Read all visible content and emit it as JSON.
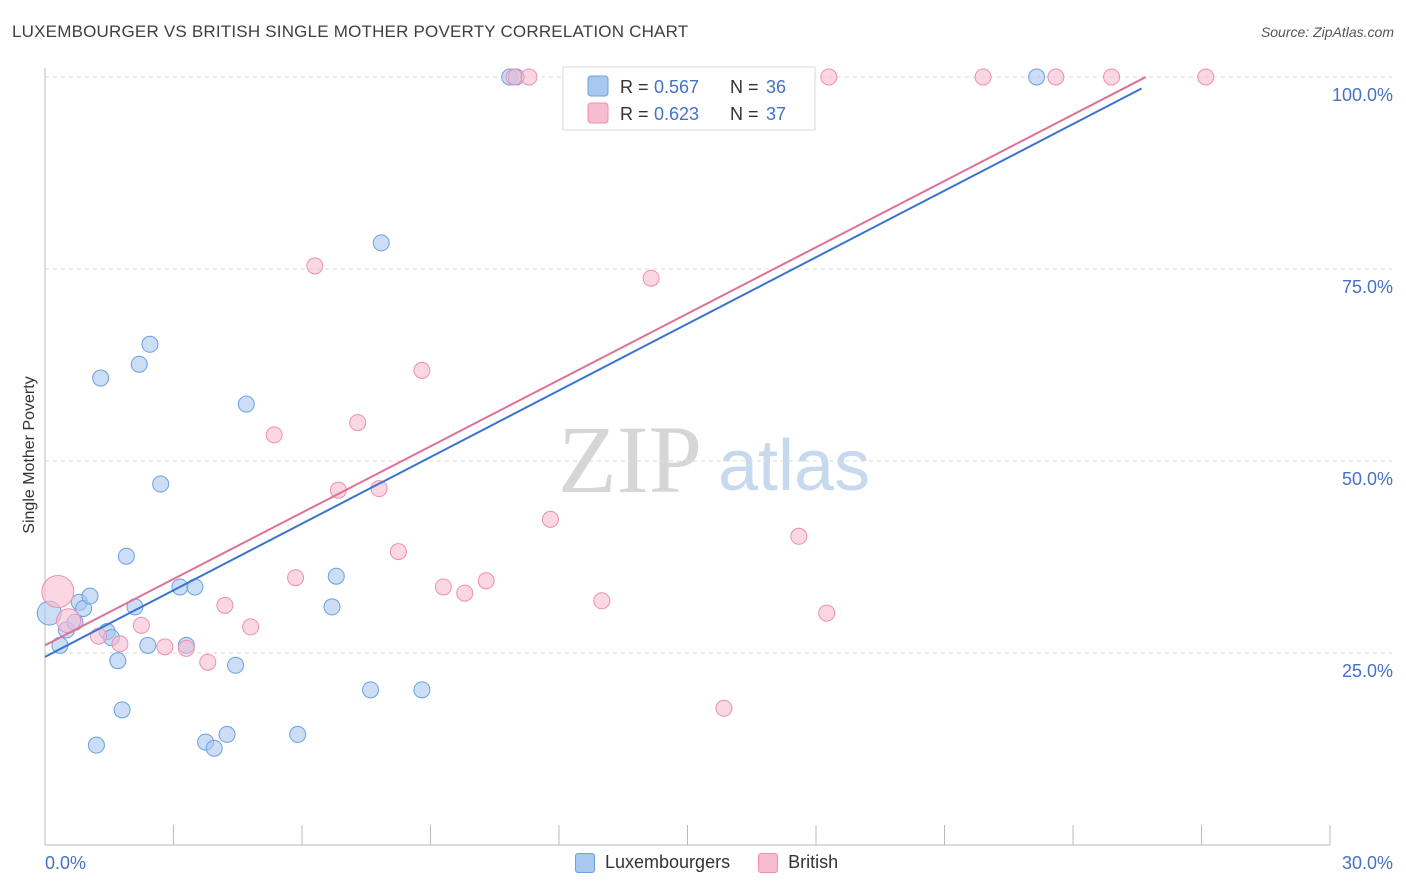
{
  "header": {
    "title": "LUXEMBOURGER VS BRITISH SINGLE MOTHER POVERTY CORRELATION CHART",
    "source": "Source: ZipAtlas.com"
  },
  "watermark": {
    "zip": "ZIP",
    "atlas": "atlas"
  },
  "legend": {
    "rows": [
      {
        "r_label": "R = ",
        "r_value": "0.567",
        "n_label": "N = ",
        "n_value": "36"
      },
      {
        "r_label": "R = ",
        "r_value": "0.623",
        "n_label": "N = ",
        "n_value": "37"
      }
    ]
  },
  "bottom_legend": {
    "series1": "Luxembourgers",
    "series2": "British"
  },
  "colors": {
    "series1_fill": "#a9c8f0",
    "series1_stroke": "#6d9fe0",
    "series1_line": "#3a74d0",
    "series2_fill": "#f7bcd0",
    "series2_stroke": "#ee8fb0",
    "series2_line": "#e07098",
    "tick_text": "#4472c4",
    "grid": "#d9d9d9"
  },
  "chart_data": {
    "type": "scatter",
    "ylabel": "Single Mother Poverty",
    "xlim": [
      0,
      30
    ],
    "ylim": [
      0,
      100
    ],
    "x_tick_labels": [
      "0.0%",
      "30.0%"
    ],
    "y_ticks": [
      25,
      50,
      75,
      100
    ],
    "y_tick_labels": [
      "25.0%",
      "50.0%",
      "75.0%",
      "100.0%"
    ],
    "grid": true,
    "legend_position": "top-center",
    "series": [
      {
        "name": "Luxembourgers",
        "r": 0.567,
        "n": 36,
        "trend": {
          "x": [
            0,
            25.6
          ],
          "y": [
            24.5,
            98.5
          ]
        },
        "points": [
          {
            "x": 0.1,
            "y": 30.2,
            "s": 12
          },
          {
            "x": 0.35,
            "y": 26.0,
            "s": 8
          },
          {
            "x": 0.5,
            "y": 28.0,
            "s": 8
          },
          {
            "x": 0.7,
            "y": 29.0,
            "s": 8
          },
          {
            "x": 0.8,
            "y": 31.6,
            "s": 8
          },
          {
            "x": 0.9,
            "y": 30.8,
            "s": 8
          },
          {
            "x": 1.05,
            "y": 32.4,
            "s": 8
          },
          {
            "x": 1.2,
            "y": 13.0,
            "s": 8
          },
          {
            "x": 1.3,
            "y": 60.8,
            "s": 8
          },
          {
            "x": 1.45,
            "y": 27.8,
            "s": 8
          },
          {
            "x": 1.55,
            "y": 27.0,
            "s": 8
          },
          {
            "x": 1.7,
            "y": 24.0,
            "s": 8
          },
          {
            "x": 1.8,
            "y": 17.6,
            "s": 8
          },
          {
            "x": 1.9,
            "y": 37.6,
            "s": 8
          },
          {
            "x": 2.1,
            "y": 31.0,
            "s": 8
          },
          {
            "x": 2.2,
            "y": 62.6,
            "s": 8
          },
          {
            "x": 2.4,
            "y": 26.0,
            "s": 8
          },
          {
            "x": 2.45,
            "y": 65.2,
            "s": 8
          },
          {
            "x": 2.7,
            "y": 47.0,
            "s": 8
          },
          {
            "x": 3.15,
            "y": 33.6,
            "s": 8
          },
          {
            "x": 3.3,
            "y": 26.0,
            "s": 8
          },
          {
            "x": 3.5,
            "y": 33.6,
            "s": 8
          },
          {
            "x": 3.75,
            "y": 13.4,
            "s": 8
          },
          {
            "x": 3.95,
            "y": 12.6,
            "s": 8
          },
          {
            "x": 4.25,
            "y": 14.4,
            "s": 8
          },
          {
            "x": 4.45,
            "y": 23.4,
            "s": 8
          },
          {
            "x": 4.7,
            "y": 57.4,
            "s": 8
          },
          {
            "x": 5.9,
            "y": 14.4,
            "s": 8
          },
          {
            "x": 6.7,
            "y": 31.0,
            "s": 8
          },
          {
            "x": 6.8,
            "y": 35.0,
            "s": 8
          },
          {
            "x": 7.6,
            "y": 20.2,
            "s": 8
          },
          {
            "x": 7.85,
            "y": 78.4,
            "s": 8
          },
          {
            "x": 8.8,
            "y": 20.2,
            "s": 8
          },
          {
            "x": 10.85,
            "y": 100.0,
            "s": 8
          },
          {
            "x": 11.0,
            "y": 100.0,
            "s": 8
          },
          {
            "x": 23.15,
            "y": 100.0,
            "s": 8
          }
        ]
      },
      {
        "name": "British",
        "r": 0.623,
        "n": 37,
        "trend": {
          "x": [
            0,
            25.7
          ],
          "y": [
            26.0,
            100.0
          ]
        },
        "points": [
          {
            "x": 0.3,
            "y": 33.0,
            "s": 16
          },
          {
            "x": 0.55,
            "y": 29.2,
            "s": 12
          },
          {
            "x": 1.25,
            "y": 27.2,
            "s": 8
          },
          {
            "x": 1.75,
            "y": 26.2,
            "s": 8
          },
          {
            "x": 2.25,
            "y": 28.6,
            "s": 8
          },
          {
            "x": 2.8,
            "y": 25.8,
            "s": 8
          },
          {
            "x": 3.3,
            "y": 25.6,
            "s": 8
          },
          {
            "x": 3.8,
            "y": 23.8,
            "s": 8
          },
          {
            "x": 4.2,
            "y": 31.2,
            "s": 8
          },
          {
            "x": 4.8,
            "y": 28.4,
            "s": 8
          },
          {
            "x": 5.35,
            "y": 53.4,
            "s": 8
          },
          {
            "x": 5.85,
            "y": 34.8,
            "s": 8
          },
          {
            "x": 6.3,
            "y": 75.4,
            "s": 8
          },
          {
            "x": 6.85,
            "y": 46.2,
            "s": 8
          },
          {
            "x": 7.3,
            "y": 55.0,
            "s": 8
          },
          {
            "x": 7.8,
            "y": 46.4,
            "s": 8
          },
          {
            "x": 8.25,
            "y": 38.2,
            "s": 8
          },
          {
            "x": 8.8,
            "y": 61.8,
            "s": 8
          },
          {
            "x": 9.3,
            "y": 33.6,
            "s": 8
          },
          {
            "x": 9.8,
            "y": 32.8,
            "s": 8
          },
          {
            "x": 10.3,
            "y": 34.4,
            "s": 8
          },
          {
            "x": 10.95,
            "y": 100.0,
            "s": 8
          },
          {
            "x": 11.3,
            "y": 100.0,
            "s": 8
          },
          {
            "x": 11.8,
            "y": 42.4,
            "s": 8
          },
          {
            "x": 12.4,
            "y": 100.0,
            "s": 8
          },
          {
            "x": 13.0,
            "y": 31.8,
            "s": 8
          },
          {
            "x": 14.0,
            "y": 100.0,
            "s": 8
          },
          {
            "x": 14.15,
            "y": 73.8,
            "s": 8
          },
          {
            "x": 15.85,
            "y": 17.8,
            "s": 8
          },
          {
            "x": 17.45,
            "y": 100.0,
            "s": 8
          },
          {
            "x": 17.6,
            "y": 40.2,
            "s": 8
          },
          {
            "x": 18.3,
            "y": 100.0,
            "s": 8
          },
          {
            "x": 18.25,
            "y": 30.2,
            "s": 8
          },
          {
            "x": 21.9,
            "y": 100.0,
            "s": 8
          },
          {
            "x": 23.6,
            "y": 100.0,
            "s": 8
          },
          {
            "x": 24.9,
            "y": 100.0,
            "s": 8
          },
          {
            "x": 27.1,
            "y": 100.0,
            "s": 8
          }
        ]
      }
    ]
  }
}
